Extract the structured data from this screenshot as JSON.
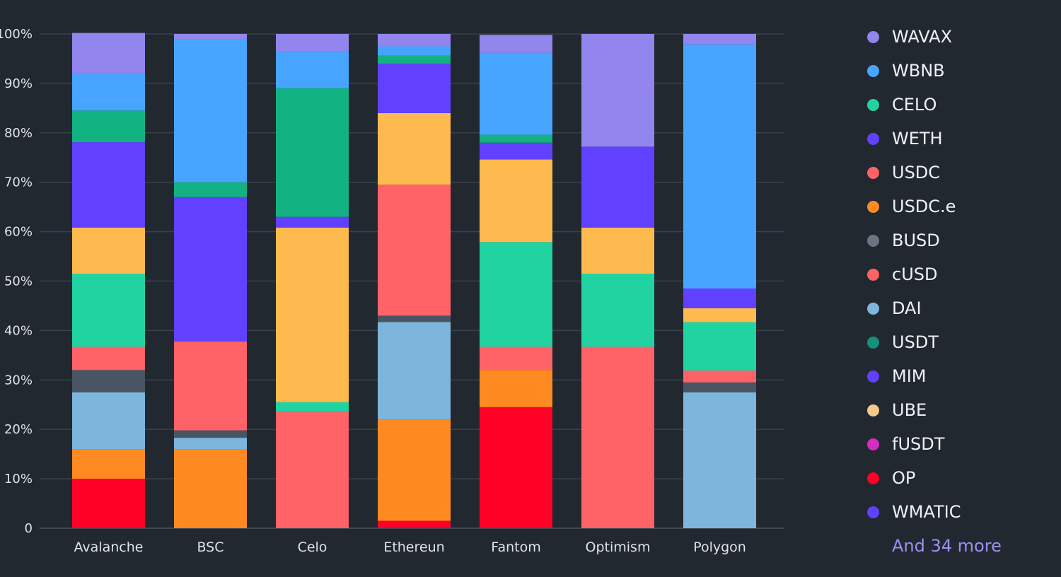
{
  "chart_data": {
    "type": "bar",
    "stacked": true,
    "normalized": true,
    "categories": [
      "Avalanche",
      "BSC",
      "Celo",
      "Ethereun",
      "Fantom",
      "Optimism",
      "Polygon"
    ],
    "y_ticks": [
      "0",
      "10%",
      "20%",
      "30%",
      "40%",
      "50%",
      "60%",
      "70%",
      "80%",
      "90%",
      "100%"
    ],
    "ylim": [
      0,
      100
    ],
    "grid": true,
    "legend_position": "right",
    "series": [
      {
        "name": "OP",
        "color": "#ff0026",
        "values": [
          10,
          0,
          0,
          1.5,
          24.5,
          0,
          0
        ]
      },
      {
        "name": "USDC.e",
        "color": "#ff8a22",
        "values": [
          6,
          16,
          0,
          20.5,
          7.5,
          0,
          0
        ]
      },
      {
        "name": "DAI",
        "color": "#7eb5dd",
        "values": [
          11.5,
          2.3,
          0,
          19.7,
          0,
          0,
          27.5
        ]
      },
      {
        "name": "BUSD",
        "color": "#4a5563",
        "values": [
          4.5,
          1.5,
          0,
          1.3,
          0,
          0,
          2
        ]
      },
      {
        "name": "cUSD",
        "color": "#ff6267",
        "values": [
          4.7,
          18,
          23.5,
          26.5,
          4.7,
          36.7,
          2.4
        ]
      },
      {
        "name": "CELO",
        "color": "#22d3a2",
        "values": [
          14.8,
          0,
          2,
          0,
          21.2,
          14.8,
          9.8
        ]
      },
      {
        "name": "UBE",
        "color": "#ffba4f",
        "values": [
          9.3,
          0,
          35.3,
          14.5,
          16.7,
          9.3,
          2.8
        ]
      },
      {
        "name": "WETH",
        "color": "#6140ff",
        "values": [
          17.3,
          29.2,
          2.2,
          10,
          3.4,
          16.4,
          4
        ]
      },
      {
        "name": "USDT",
        "color": "#13b283",
        "values": [
          6.4,
          3,
          26,
          1.6,
          1.6,
          0,
          0
        ]
      },
      {
        "name": "WBNB",
        "color": "#47a4ff",
        "values": [
          7.4,
          29,
          7.4,
          1.9,
          16.6,
          0,
          49.4
        ]
      },
      {
        "name": "WAVAX",
        "color": "#9385ee",
        "values": [
          8.3,
          1.0,
          3.6,
          2.5,
          3.6,
          22.8,
          2.1
        ]
      }
    ]
  },
  "legend": {
    "items": [
      {
        "label": "WAVAX",
        "color": "#9385ee"
      },
      {
        "label": "WBNB",
        "color": "#47a4ff"
      },
      {
        "label": "CELO",
        "color": "#22d3a2"
      },
      {
        "label": "WETH",
        "color": "#6140ff"
      },
      {
        "label": "USDC",
        "color": "#ff6267"
      },
      {
        "label": "USDC.e",
        "color": "#ff8a22"
      },
      {
        "label": "BUSD",
        "color": "#6b7480"
      },
      {
        "label": "cUSD",
        "color": "#ff6267"
      },
      {
        "label": "DAI",
        "color": "#7eb5dd"
      },
      {
        "label": "USDT",
        "color": "#13917a"
      },
      {
        "label": "MIM",
        "color": "#6140ff"
      },
      {
        "label": "UBE",
        "color": "#f6c889"
      },
      {
        "label": "fUSDT",
        "color": "#d42cc0"
      },
      {
        "label": "OP",
        "color": "#ff0026"
      },
      {
        "label": "WMATIC",
        "color": "#6140ff"
      }
    ],
    "more_label": "And 34 more"
  }
}
